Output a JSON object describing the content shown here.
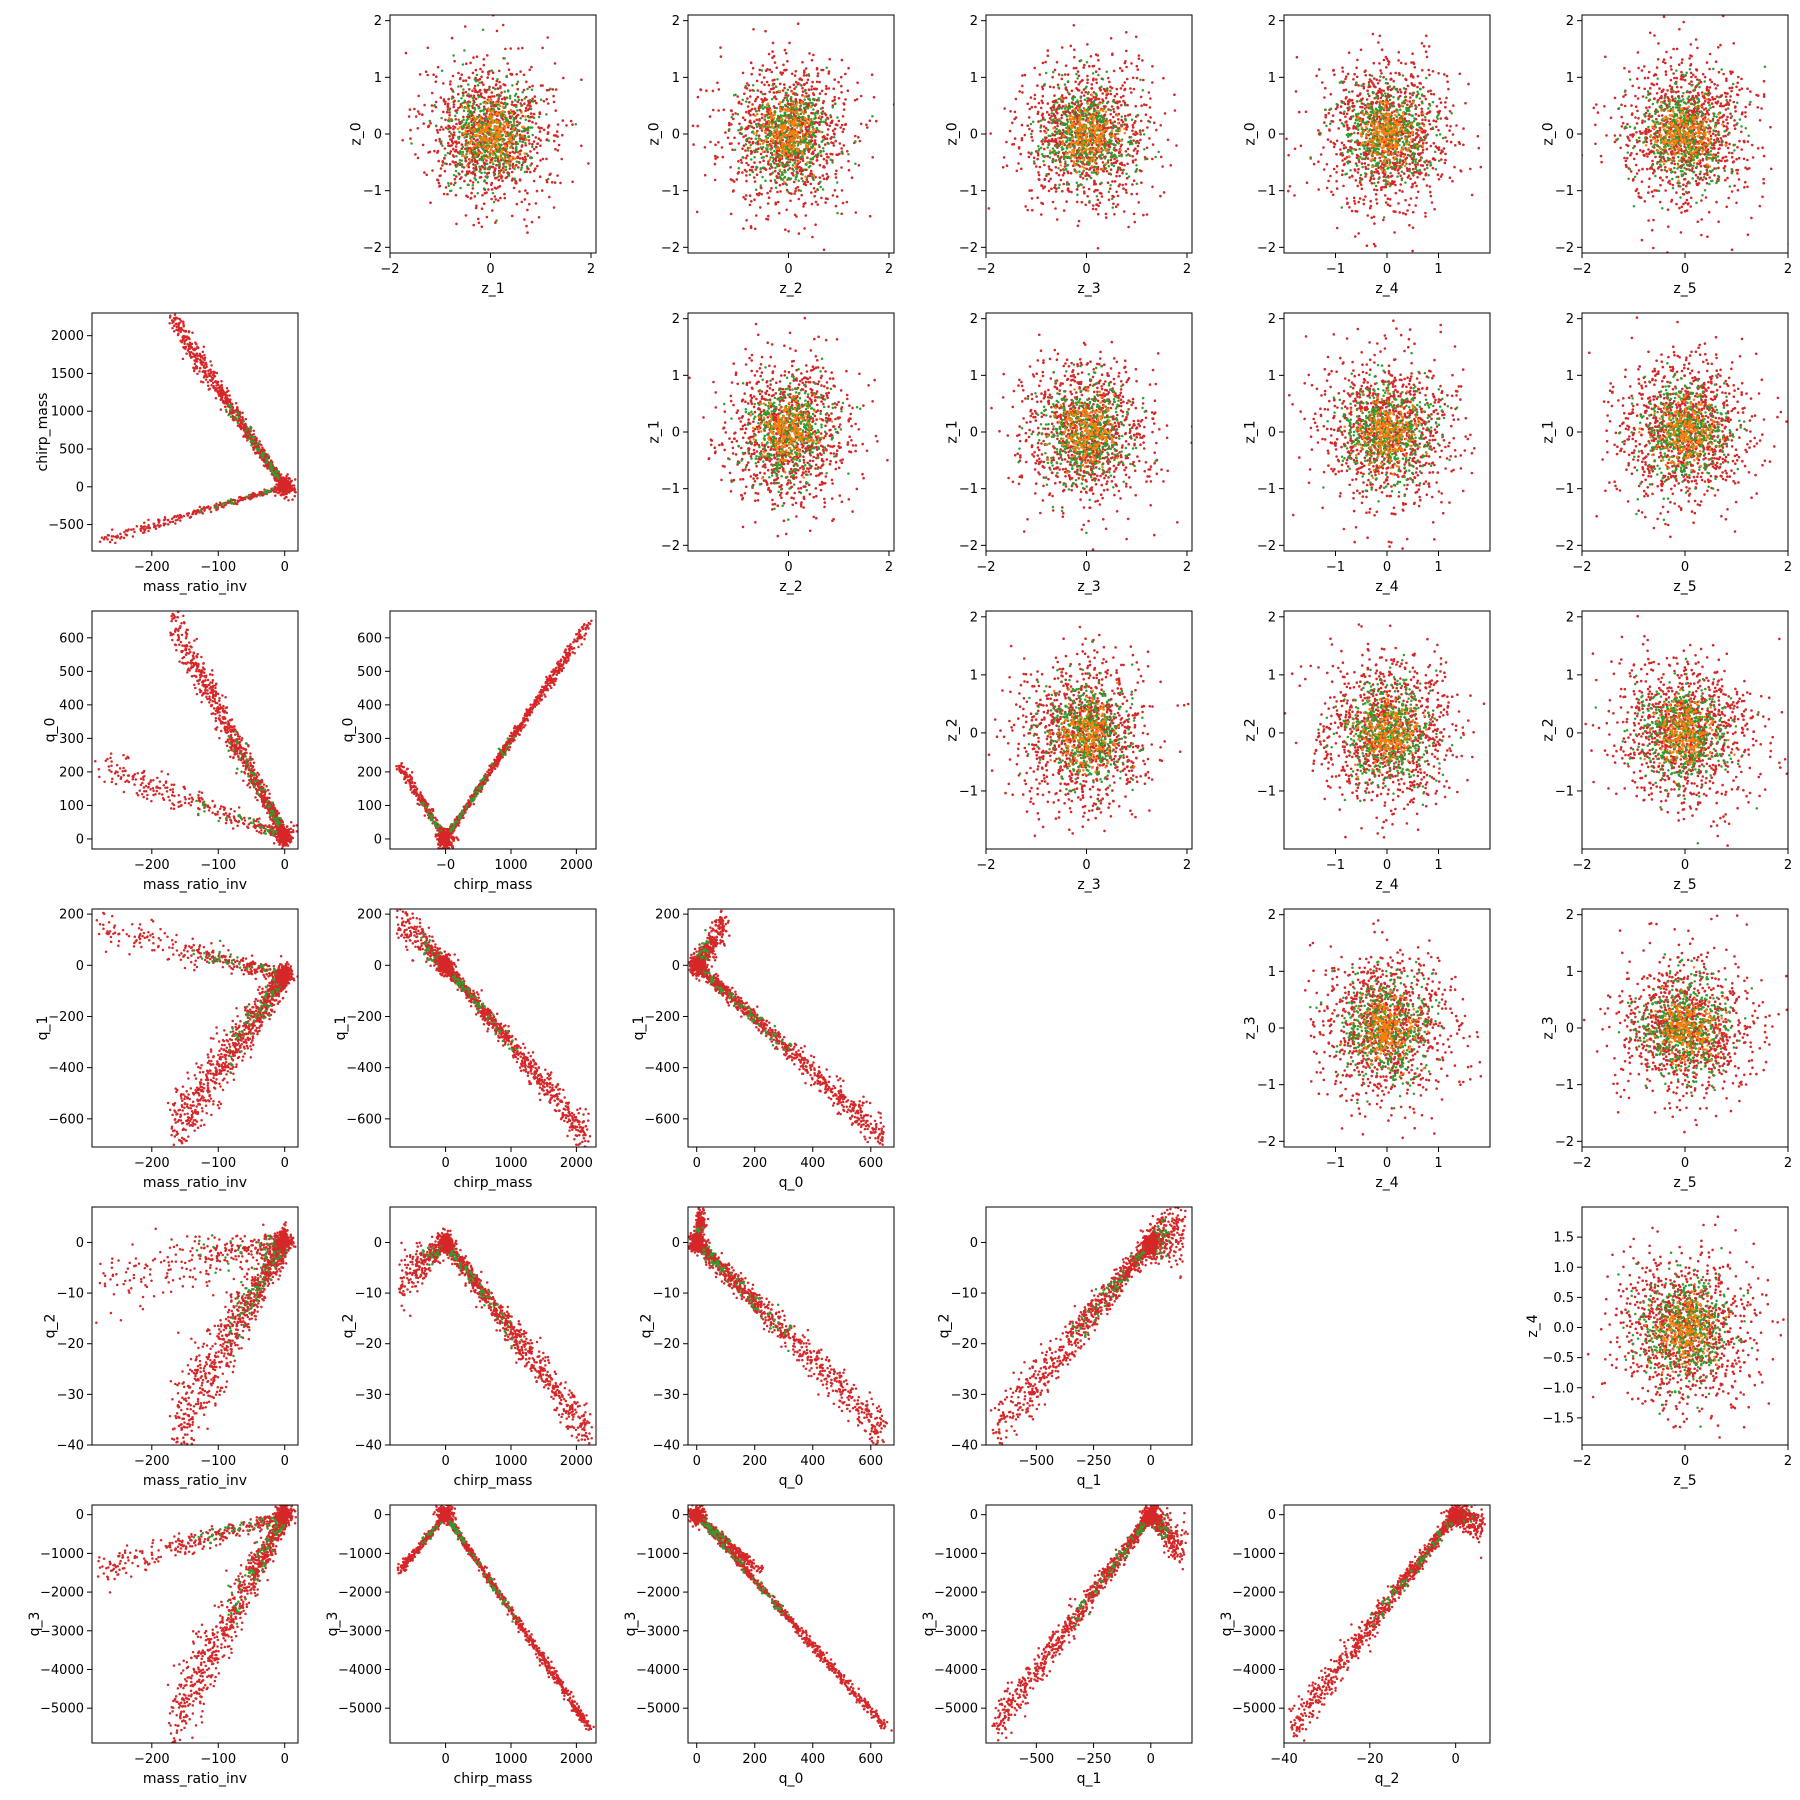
{
  "chart_data": {
    "type": "scatter",
    "layout": "lower-and-upper-triangle pair grid, 6 rows x 6 columns, diagonal empty",
    "colors": {
      "red": "#d62728",
      "green": "#2ca02c",
      "orange": "#ff7f0e"
    },
    "series": [
      {
        "color": "#d62728"
      },
      {
        "color": "#2ca02c"
      },
      {
        "color": "#ff7f0e"
      }
    ],
    "panels": [
      {
        "row": 0,
        "col": 1,
        "xlabel": "z_1",
        "ylabel": "z_0",
        "xlim": [
          -2.0,
          2.1
        ],
        "ylim": [
          -2.1,
          2.1
        ],
        "xticks": [
          "-2",
          "0",
          "2"
        ],
        "yticks": [
          "-2",
          "-1",
          "0",
          "1",
          "2"
        ],
        "kind": "gaussian"
      },
      {
        "row": 0,
        "col": 2,
        "xlabel": "z_2",
        "ylabel": "z_0",
        "xlim": [
          -2.0,
          2.1
        ],
        "ylim": [
          -2.1,
          2.1
        ],
        "xticks": [
          "0",
          "2"
        ],
        "yticks": [
          "-2",
          "-1",
          "0",
          "1",
          "2"
        ],
        "kind": "gaussian"
      },
      {
        "row": 0,
        "col": 3,
        "xlabel": "z_3",
        "ylabel": "z_0",
        "xlim": [
          -2.0,
          2.1
        ],
        "ylim": [
          -2.1,
          2.1
        ],
        "xticks": [
          "-2",
          "0",
          "2"
        ],
        "yticks": [
          "-2",
          "-1",
          "0",
          "1",
          "2"
        ],
        "kind": "gaussian"
      },
      {
        "row": 0,
        "col": 4,
        "xlabel": "z_4",
        "ylabel": "z_0",
        "xlim": [
          -2.0,
          2.0
        ],
        "ylim": [
          -2.1,
          2.1
        ],
        "xticks": [
          "-1",
          "0",
          "1"
        ],
        "yticks": [
          "-2",
          "-1",
          "0",
          "1",
          "2"
        ],
        "kind": "gaussian"
      },
      {
        "row": 0,
        "col": 5,
        "xlabel": "z_5",
        "ylabel": "z_0",
        "xlim": [
          -2.0,
          2.0
        ],
        "ylim": [
          -2.1,
          2.1
        ],
        "xticks": [
          "-2",
          "0",
          "2"
        ],
        "yticks": [
          "-2",
          "-1",
          "0",
          "1",
          "2"
        ],
        "kind": "gaussian"
      },
      {
        "row": 1,
        "col": 0,
        "xlabel": "mass_ratio_inv",
        "ylabel": "chirp_mass",
        "xlim": [
          -290,
          20
        ],
        "ylim": [
          -850,
          2300
        ],
        "xticks": [
          "-200",
          "-100",
          "0"
        ],
        "yticks": [
          "-500",
          "0",
          "500",
          "1000",
          "1500",
          "2000"
        ],
        "kind": "vshape",
        "points": {
          "apex": [
            0,
            0
          ],
          "armA": {
            "end": [
              -170,
              2200
            ],
            "spread": 70
          },
          "armB": {
            "end": [
              -280,
              -720
            ],
            "spread": 30
          }
        }
      },
      {
        "row": 1,
        "col": 2,
        "xlabel": "z_2",
        "ylabel": "z_1",
        "xlim": [
          -2.0,
          2.1
        ],
        "ylim": [
          -2.1,
          2.1
        ],
        "xticks": [
          "0",
          "2"
        ],
        "yticks": [
          "-2",
          "-1",
          "0",
          "1",
          "2"
        ],
        "kind": "gaussian"
      },
      {
        "row": 1,
        "col": 3,
        "xlabel": "z_3",
        "ylabel": "z_1",
        "xlim": [
          -2.0,
          2.1
        ],
        "ylim": [
          -2.1,
          2.1
        ],
        "xticks": [
          "-2",
          "0",
          "2"
        ],
        "yticks": [
          "-2",
          "-1",
          "0",
          "1",
          "2"
        ],
        "kind": "gaussian"
      },
      {
        "row": 1,
        "col": 4,
        "xlabel": "z_4",
        "ylabel": "z_1",
        "xlim": [
          -2.0,
          2.0
        ],
        "ylim": [
          -2.1,
          2.1
        ],
        "xticks": [
          "-1",
          "0",
          "1"
        ],
        "yticks": [
          "-2",
          "-1",
          "0",
          "1",
          "2"
        ],
        "kind": "gaussian"
      },
      {
        "row": 1,
        "col": 5,
        "xlabel": "z_5",
        "ylabel": "z_1",
        "xlim": [
          -2.0,
          2.0
        ],
        "ylim": [
          -2.1,
          2.1
        ],
        "xticks": [
          "-2",
          "0",
          "2"
        ],
        "yticks": [
          "-2",
          "-1",
          "0",
          "1",
          "2"
        ],
        "kind": "gaussian"
      },
      {
        "row": 2,
        "col": 0,
        "xlabel": "mass_ratio_inv",
        "ylabel": "q_0",
        "xlim": [
          -290,
          20
        ],
        "ylim": [
          -30,
          680
        ],
        "xticks": [
          "-200",
          "-100",
          "0"
        ],
        "yticks": [
          "0",
          "100",
          "200",
          "300",
          "400",
          "500",
          "600"
        ],
        "kind": "vshape",
        "points": {
          "apex": [
            0,
            10
          ],
          "armA": {
            "end": [
              -170,
              650
            ],
            "spread": 30
          },
          "armB": {
            "end": [
              -280,
              220
            ],
            "spread": 20
          }
        }
      },
      {
        "row": 2,
        "col": 1,
        "xlabel": "chirp_mass",
        "ylabel": "q_0",
        "xlim": [
          -850,
          2300
        ],
        "ylim": [
          -30,
          680
        ],
        "xticks": [
          "-0",
          "1000",
          "2000"
        ],
        "yticks": [
          "0",
          "100",
          "200",
          "300",
          "400",
          "500",
          "600"
        ],
        "kind": "vshape",
        "points": {
          "apex": [
            0,
            0
          ],
          "armA": {
            "end": [
              2200,
              650
            ],
            "spread": 5
          },
          "armB": {
            "end": [
              -700,
              220
            ],
            "spread": 5
          }
        }
      },
      {
        "row": 2,
        "col": 3,
        "xlabel": "z_3",
        "ylabel": "z_2",
        "xlim": [
          -2.0,
          2.1
        ],
        "ylim": [
          -2.0,
          2.1
        ],
        "xticks": [
          "-2",
          "0",
          "2"
        ],
        "yticks": [
          "-1",
          "0",
          "1",
          "2"
        ],
        "kind": "gaussian"
      },
      {
        "row": 2,
        "col": 4,
        "xlabel": "z_4",
        "ylabel": "z_2",
        "xlim": [
          -2.0,
          2.0
        ],
        "ylim": [
          -2.0,
          2.1
        ],
        "xticks": [
          "-1",
          "0",
          "1"
        ],
        "yticks": [
          "-1",
          "0",
          "1",
          "2"
        ],
        "kind": "gaussian"
      },
      {
        "row": 2,
        "col": 5,
        "xlabel": "z_5",
        "ylabel": "z_2",
        "xlim": [
          -2.0,
          2.0
        ],
        "ylim": [
          -2.0,
          2.1
        ],
        "xticks": [
          "-2",
          "0",
          "2"
        ],
        "yticks": [
          "-1",
          "0",
          "1",
          "2"
        ],
        "kind": "gaussian"
      },
      {
        "row": 3,
        "col": 0,
        "xlabel": "mass_ratio_inv",
        "ylabel": "q_1",
        "xlim": [
          -290,
          20
        ],
        "ylim": [
          -710,
          220
        ],
        "xticks": [
          "-200",
          "-100",
          "0"
        ],
        "yticks": [
          "-600",
          "-400",
          "-200",
          "0",
          "200"
        ],
        "kind": "vshape",
        "points": {
          "apex": [
            0,
            -40
          ],
          "armA": {
            "end": [
              -170,
              -660
            ],
            "spread": 60
          },
          "armB": {
            "end": [
              -280,
              150
            ],
            "spread": 30
          }
        }
      },
      {
        "row": 3,
        "col": 1,
        "xlabel": "chirp_mass",
        "ylabel": "q_1",
        "xlim": [
          -850,
          2300
        ],
        "ylim": [
          -710,
          220
        ],
        "xticks": [
          "0",
          "1000",
          "2000"
        ],
        "yticks": [
          "-600",
          "-400",
          "-200",
          "0",
          "200"
        ],
        "kind": "vshape",
        "points": {
          "apex": [
            0,
            0
          ],
          "armA": {
            "end": [
              2200,
              -680
            ],
            "spread": 25
          },
          "armB": {
            "end": [
              -700,
              170
            ],
            "spread": 35
          }
        }
      },
      {
        "row": 3,
        "col": 2,
        "xlabel": "q_0",
        "ylabel": "q_1",
        "xlim": [
          -30,
          680
        ],
        "ylim": [
          -710,
          220
        ],
        "xticks": [
          "0",
          "200",
          "400",
          "600"
        ],
        "yticks": [
          "-600",
          "-400",
          "-200",
          "0",
          "200"
        ],
        "kind": "vshape",
        "points": {
          "apex": [
            0,
            0
          ],
          "armA": {
            "end": [
              650,
              -680
            ],
            "spread": 25
          },
          "armB": {
            "end": [
              100,
              180
            ],
            "spread": 35
          }
        }
      },
      {
        "row": 3,
        "col": 4,
        "xlabel": "z_4",
        "ylabel": "z_3",
        "xlim": [
          -2.0,
          2.0
        ],
        "ylim": [
          -2.1,
          2.1
        ],
        "xticks": [
          "-1",
          "0",
          "1"
        ],
        "yticks": [
          "-2",
          "-1",
          "0",
          "1",
          "2"
        ],
        "kind": "gaussian"
      },
      {
        "row": 3,
        "col": 5,
        "xlabel": "z_5",
        "ylabel": "z_3",
        "xlim": [
          -2.0,
          2.0
        ],
        "ylim": [
          -2.1,
          2.1
        ],
        "xticks": [
          "-2",
          "0",
          "2"
        ],
        "yticks": [
          "-2",
          "-1",
          "0",
          "1",
          "2"
        ],
        "kind": "gaussian"
      },
      {
        "row": 4,
        "col": 0,
        "xlabel": "mass_ratio_inv",
        "ylabel": "q_2",
        "xlim": [
          -290,
          20
        ],
        "ylim": [
          -40,
          7
        ],
        "xticks": [
          "-200",
          "-100",
          "0"
        ],
        "yticks": [
          "-40",
          "-30",
          "-20",
          "-10",
          "0"
        ],
        "kind": "vshape",
        "points": {
          "apex": [
            0,
            0
          ],
          "armA": {
            "end": [
              -170,
              -38
            ],
            "spread": 4
          },
          "armB": {
            "end": [
              -280,
              -8
            ],
            "spread": 3
          }
        }
      },
      {
        "row": 4,
        "col": 1,
        "xlabel": "chirp_mass",
        "ylabel": "q_2",
        "xlim": [
          -850,
          2300
        ],
        "ylim": [
          -40,
          7
        ],
        "xticks": [
          "0",
          "1000",
          "2000"
        ],
        "yticks": [
          "-40",
          "-30",
          "-20",
          "-10",
          "0"
        ],
        "kind": "vshape",
        "points": {
          "apex": [
            0,
            0
          ],
          "armA": {
            "end": [
              2200,
              -38
            ],
            "spread": 1.8
          },
          "armB": {
            "end": [
              -700,
              -8
            ],
            "spread": 2
          }
        }
      },
      {
        "row": 4,
        "col": 2,
        "xlabel": "q_0",
        "ylabel": "q_2",
        "xlim": [
          -30,
          680
        ],
        "ylim": [
          -40,
          7
        ],
        "xticks": [
          "0",
          "200",
          "400",
          "600"
        ],
        "yticks": [
          "-40",
          "-30",
          "-20",
          "-10",
          "0"
        ],
        "kind": "vshape",
        "points": {
          "apex": [
            0,
            0
          ],
          "armA": {
            "end": [
              650,
              -38
            ],
            "spread": 1.8
          },
          "armB": {
            "end": [
              20,
              6
            ],
            "spread": 1.5
          }
        }
      },
      {
        "row": 4,
        "col": 3,
        "xlabel": "q_1",
        "ylabel": "q_2",
        "xlim": [
          -720,
          180
        ],
        "ylim": [
          -40,
          7
        ],
        "xticks": [
          "-500",
          "-250",
          "0"
        ],
        "yticks": [
          "-40",
          "-30",
          "-20",
          "-10",
          "0"
        ],
        "kind": "vshape",
        "points": {
          "apex": [
            0,
            0
          ],
          "armA": {
            "end": [
              -680,
              -38
            ],
            "spread": 2.5
          },
          "armB": {
            "end": [
              150,
              2
            ],
            "spread": 3
          }
        }
      },
      {
        "row": 4,
        "col": 5,
        "xlabel": "z_5",
        "ylabel": "z_4",
        "xlim": [
          -2.0,
          2.0
        ],
        "ylim": [
          -1.95,
          2.0
        ],
        "xticks": [
          "-2",
          "0",
          "2"
        ],
        "yticks": [
          "-1.5",
          "-1.0",
          "-0.5",
          "0.0",
          "0.5",
          "1.0",
          "1.5"
        ],
        "kind": "gaussian"
      },
      {
        "row": 5,
        "col": 0,
        "xlabel": "mass_ratio_inv",
        "ylabel": "q_3",
        "xlim": [
          -290,
          20
        ],
        "ylim": [
          -5900,
          250
        ],
        "xticks": [
          "-200",
          "-100",
          "0"
        ],
        "yticks": [
          "-5000",
          "-4000",
          "-3000",
          "-2000",
          "-1000",
          "0"
        ],
        "kind": "vshape",
        "points": {
          "apex": [
            0,
            0
          ],
          "armA": {
            "end": [
              -170,
              -5500
            ],
            "spread": 450
          },
          "armB": {
            "end": [
              -280,
              -1450
            ],
            "spread": 150
          }
        }
      },
      {
        "row": 5,
        "col": 1,
        "xlabel": "chirp_mass",
        "ylabel": "q_3",
        "xlim": [
          -850,
          2300
        ],
        "ylim": [
          -5900,
          250
        ],
        "xticks": [
          "0",
          "1000",
          "2000"
        ],
        "yticks": [
          "-5000",
          "-4000",
          "-3000",
          "-2000",
          "-1000",
          "0"
        ],
        "kind": "vshape",
        "points": {
          "apex": [
            0,
            0
          ],
          "armA": {
            "end": [
              2200,
              -5500
            ],
            "spread": 30
          },
          "armB": {
            "end": [
              -700,
              -1450
            ],
            "spread": 30
          }
        }
      },
      {
        "row": 5,
        "col": 2,
        "xlabel": "q_0",
        "ylabel": "q_3",
        "xlim": [
          -30,
          680
        ],
        "ylim": [
          -5900,
          250
        ],
        "xticks": [
          "0",
          "200",
          "400",
          "600"
        ],
        "yticks": [
          "-5000",
          "-4000",
          "-3000",
          "-2000",
          "-1000",
          "0"
        ],
        "kind": "vshape",
        "points": {
          "apex": [
            0,
            0
          ],
          "armA": {
            "end": [
              650,
              -5500
            ],
            "spread": 40
          },
          "armB": {
            "end": [
              220,
              -1450
            ],
            "spread": 40
          }
        }
      },
      {
        "row": 5,
        "col": 3,
        "xlabel": "q_1",
        "ylabel": "q_3",
        "xlim": [
          -720,
          180
        ],
        "ylim": [
          -5900,
          250
        ],
        "xticks": [
          "-500",
          "-250",
          "0"
        ],
        "yticks": [
          "-5000",
          "-4000",
          "-3000",
          "-2000",
          "-1000",
          "0"
        ],
        "kind": "vshape",
        "points": {
          "apex": [
            0,
            0
          ],
          "armA": {
            "end": [
              -680,
              -5500
            ],
            "spread": 200
          },
          "armB": {
            "end": [
              150,
              -1000
            ],
            "spread": 250
          }
        }
      },
      {
        "row": 5,
        "col": 4,
        "xlabel": "q_2",
        "ylabel": "q_3",
        "xlim": [
          -40,
          8
        ],
        "ylim": [
          -5900,
          250
        ],
        "xticks": [
          "-40",
          "-20",
          "0"
        ],
        "yticks": [
          "-5000",
          "-4000",
          "-3000",
          "-2000",
          "-1000",
          "0"
        ],
        "kind": "vshape",
        "points": {
          "apex": [
            0,
            0
          ],
          "armA": {
            "end": [
              -38,
              -5500
            ],
            "spread": 180
          },
          "armB": {
            "end": [
              6,
              -300
            ],
            "spread": 200
          }
        }
      }
    ]
  }
}
